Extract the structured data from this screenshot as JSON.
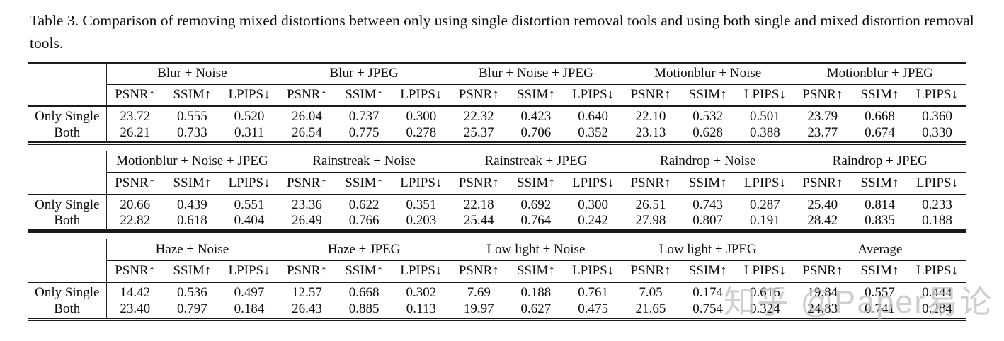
{
  "title": "Table 3.  Comparison of removing mixed distortions between only using single distortion removal tools and using both single and mixed distortion removal tools.",
  "watermark": "知乎 @Paper易论",
  "metrics": [
    "PSNR↑",
    "SSIM↑",
    "LPIPS↓"
  ],
  "bands": [
    {
      "groups": [
        "Blur + Noise",
        "Blur + JPEG",
        "Blur + Noise + JPEG",
        "Motionblur + Noise",
        "Motionblur + JPEG"
      ],
      "rows": [
        {
          "label": "Only Single",
          "values": [
            [
              "23.72",
              "0.555",
              "0.520"
            ],
            [
              "26.04",
              "0.737",
              "0.300"
            ],
            [
              "22.32",
              "0.423",
              "0.640"
            ],
            [
              "22.10",
              "0.532",
              "0.501"
            ],
            [
              "23.79",
              "0.668",
              "0.360"
            ]
          ]
        },
        {
          "label": "Both",
          "values": [
            [
              "26.21",
              "0.733",
              "0.311"
            ],
            [
              "26.54",
              "0.775",
              "0.278"
            ],
            [
              "25.37",
              "0.706",
              "0.352"
            ],
            [
              "23.13",
              "0.628",
              "0.388"
            ],
            [
              "23.77",
              "0.674",
              "0.330"
            ]
          ]
        }
      ]
    },
    {
      "groups": [
        "Motionblur + Noise + JPEG",
        "Rainstreak + Noise",
        "Rainstreak + JPEG",
        "Raindrop + Noise",
        "Raindrop + JPEG"
      ],
      "rows": [
        {
          "label": "Only Single",
          "values": [
            [
              "20.66",
              "0.439",
              "0.551"
            ],
            [
              "23.36",
              "0.622",
              "0.351"
            ],
            [
              "22.18",
              "0.692",
              "0.300"
            ],
            [
              "26.51",
              "0.743",
              "0.287"
            ],
            [
              "25.40",
              "0.814",
              "0.233"
            ]
          ]
        },
        {
          "label": "Both",
          "values": [
            [
              "22.82",
              "0.618",
              "0.404"
            ],
            [
              "26.49",
              "0.766",
              "0.203"
            ],
            [
              "25.44",
              "0.764",
              "0.242"
            ],
            [
              "27.98",
              "0.807",
              "0.191"
            ],
            [
              "28.42",
              "0.835",
              "0.188"
            ]
          ]
        }
      ]
    },
    {
      "groups": [
        "Haze + Noise",
        "Haze + JPEG",
        "Low light + Noise",
        "Low light + JPEG",
        "Average"
      ],
      "rows": [
        {
          "label": "Only Single",
          "values": [
            [
              "14.42",
              "0.536",
              "0.497"
            ],
            [
              "12.57",
              "0.668",
              "0.302"
            ],
            [
              "7.69",
              "0.188",
              "0.761"
            ],
            [
              "7.05",
              "0.174",
              "0.616"
            ],
            [
              "19.84",
              "0.557",
              "0.444"
            ]
          ]
        },
        {
          "label": "Both",
          "values": [
            [
              "23.40",
              "0.797",
              "0.184"
            ],
            [
              "26.43",
              "0.885",
              "0.113"
            ],
            [
              "19.97",
              "0.627",
              "0.475"
            ],
            [
              "21.65",
              "0.754",
              "0.324"
            ],
            [
              "24.83",
              "0.741",
              "0.284"
            ]
          ]
        }
      ]
    }
  ]
}
